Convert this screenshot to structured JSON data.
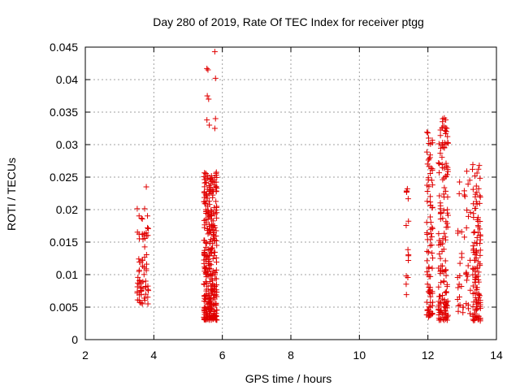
{
  "chart_data": {
    "type": "scatter",
    "title": "Day 280 of 2019, Rate Of TEC Index for receiver ptgg",
    "xlabel": "GPS time / hours",
    "ylabel": "ROTI / TECUs",
    "xlim": [
      2,
      14
    ],
    "ylim": [
      0,
      0.045
    ],
    "xticks": [
      2,
      4,
      6,
      8,
      10,
      12,
      14
    ],
    "yticks": [
      0,
      0.005,
      0.01,
      0.015,
      0.02,
      0.025,
      0.03,
      0.035,
      0.04,
      0.045
    ],
    "xtick_labels": [
      "2",
      "4",
      "6",
      "8",
      "10",
      "12",
      "14"
    ],
    "ytick_labels": [
      "0",
      "0.005",
      "0.01",
      "0.015",
      "0.02",
      "0.025",
      "0.03",
      "0.035",
      "0.04",
      "0.045"
    ],
    "grid": true,
    "marker": "+",
    "color": "#e00000",
    "clusters": [
      {
        "x_range": [
          3.5,
          3.85
        ],
        "y_range": [
          0.0055,
          0.0205
        ],
        "count": 70
      },
      {
        "x_range": [
          5.45,
          5.85
        ],
        "y_range": [
          0.003,
          0.026
        ],
        "count": 340
      },
      {
        "x_range": [
          11.35,
          11.45
        ],
        "y_range": [
          0.0055,
          0.0235
        ],
        "count": 14
      },
      {
        "x_range": [
          11.95,
          12.15
        ],
        "y_range": [
          0.0035,
          0.032
        ],
        "count": 90
      },
      {
        "x_range": [
          12.3,
          12.6
        ],
        "y_range": [
          0.003,
          0.034
        ],
        "count": 150
      },
      {
        "x_range": [
          12.85,
          13.25
        ],
        "y_range": [
          0.004,
          0.026
        ],
        "count": 45
      },
      {
        "x_range": [
          13.3,
          13.55
        ],
        "y_range": [
          0.0028,
          0.027
        ],
        "count": 120
      }
    ],
    "series": [
      {
        "name": "ROTI",
        "points": [
          [
            5.78,
            0.0443
          ],
          [
            5.55,
            0.0417
          ],
          [
            5.58,
            0.0415
          ],
          [
            5.8,
            0.0402
          ],
          [
            5.56,
            0.0375
          ],
          [
            5.6,
            0.037
          ],
          [
            5.8,
            0.034
          ],
          [
            5.55,
            0.0338
          ],
          [
            5.62,
            0.033
          ],
          [
            5.78,
            0.0325
          ],
          [
            12.48,
            0.0341
          ],
          [
            12.52,
            0.0338
          ],
          [
            12.5,
            0.0322
          ],
          [
            12.55,
            0.0325
          ],
          [
            12.0,
            0.0318
          ],
          [
            12.02,
            0.031
          ],
          [
            12.48,
            0.0295
          ],
          [
            3.78,
            0.0235
          ],
          [
            11.4,
            0.0232
          ],
          [
            13.5,
            0.0268
          ],
          [
            13.3,
            0.0262
          ]
        ]
      }
    ]
  }
}
